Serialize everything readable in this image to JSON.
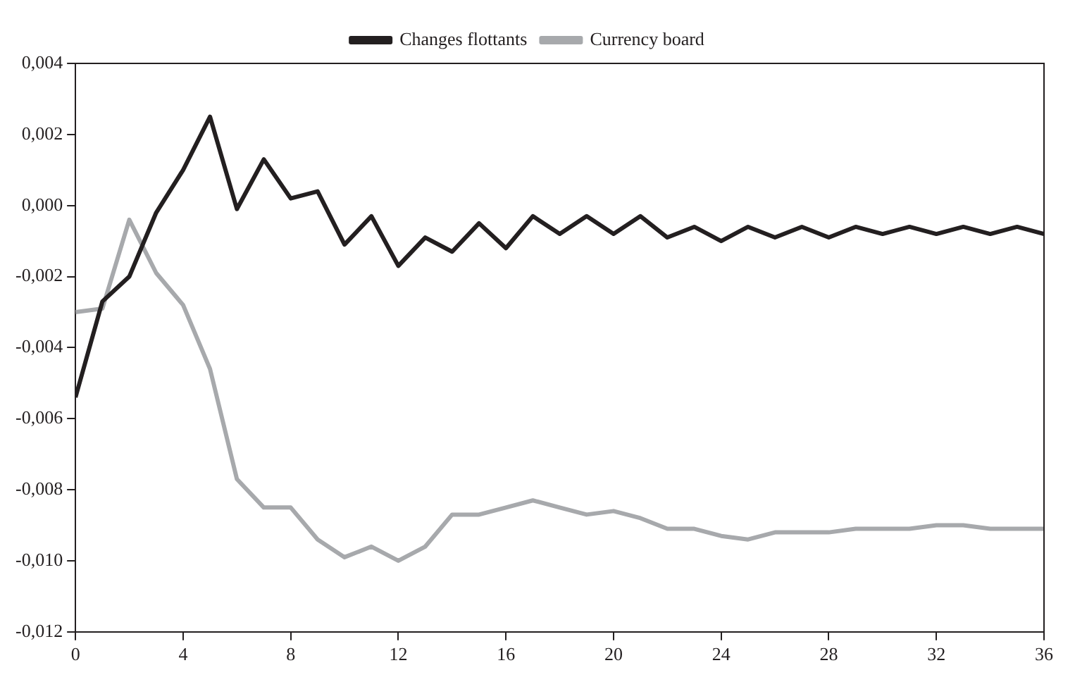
{
  "chart_data": {
    "type": "line",
    "x": [
      0,
      1,
      2,
      3,
      4,
      5,
      6,
      7,
      8,
      9,
      10,
      11,
      12,
      13,
      14,
      15,
      16,
      17,
      18,
      19,
      20,
      21,
      22,
      23,
      24,
      25,
      26,
      27,
      28,
      29,
      30,
      31,
      32,
      33,
      34,
      35,
      36
    ],
    "series": [
      {
        "name": "Changes flottants",
        "color": "#231f20",
        "values": [
          -0.0054,
          -0.0027,
          -0.002,
          -0.0002,
          0.001,
          0.0025,
          -0.0001,
          0.0013,
          0.0002,
          0.0004,
          -0.0011,
          -0.0003,
          -0.0017,
          -0.0009,
          -0.0013,
          -0.0005,
          -0.0012,
          -0.0003,
          -0.0008,
          -0.0003,
          -0.0008,
          -0.0003,
          -0.0009,
          -0.0006,
          -0.001,
          -0.0006,
          -0.0009,
          -0.0006,
          -0.0009,
          -0.0006,
          -0.0008,
          -0.0006,
          -0.0008,
          -0.0006,
          -0.0008,
          -0.0006,
          -0.0008
        ]
      },
      {
        "name": "Currency board",
        "color": "#a7a9ac",
        "values": [
          -0.003,
          -0.0029,
          -0.0004,
          -0.0019,
          -0.0028,
          -0.0046,
          -0.0077,
          -0.0085,
          -0.0085,
          -0.0094,
          -0.0099,
          -0.0096,
          -0.01,
          -0.0096,
          -0.0087,
          -0.0087,
          -0.0085,
          -0.0083,
          -0.0085,
          -0.0087,
          -0.0086,
          -0.0088,
          -0.0091,
          -0.0091,
          -0.0093,
          -0.0094,
          -0.0092,
          -0.0092,
          -0.0092,
          -0.0091,
          -0.0091,
          -0.0091,
          -0.009,
          -0.009,
          -0.0091,
          -0.0091,
          -0.0091
        ]
      }
    ],
    "xlim": [
      0,
      36
    ],
    "xticks": [
      0,
      4,
      8,
      12,
      16,
      20,
      24,
      28,
      32,
      36
    ],
    "ylim": [
      -0.012,
      0.004
    ],
    "yticks": [
      {
        "value": -0.012,
        "label": "-0,012"
      },
      {
        "value": -0.01,
        "label": "-0,010"
      },
      {
        "value": -0.008,
        "label": "-0,008"
      },
      {
        "value": -0.006,
        "label": "-0,006"
      },
      {
        "value": -0.004,
        "label": "-0,004"
      },
      {
        "value": -0.002,
        "label": "-0,002"
      },
      {
        "value": 0,
        "label": "0,000"
      },
      {
        "value": 0.002,
        "label": "0,002"
      },
      {
        "value": 0.004,
        "label": "0,004"
      }
    ],
    "grid": false,
    "legend": "top",
    "marker": "none",
    "line_style": "solid"
  }
}
